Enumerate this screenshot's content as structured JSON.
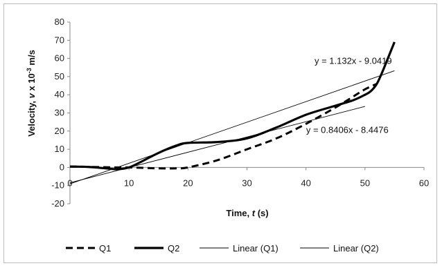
{
  "chart_data": {
    "type": "line",
    "title": "",
    "xlabel": "Time, t (s)",
    "ylabel": "Velocity, v x 10⁻³ m/s",
    "xlim": [
      0,
      60
    ],
    "ylim": [
      -20,
      80
    ],
    "xticks": [
      0,
      10,
      20,
      30,
      40,
      50,
      60
    ],
    "yticks": [
      -20,
      -10,
      0,
      10,
      20,
      30,
      40,
      50,
      60,
      70,
      80
    ],
    "grid": false,
    "legend_position": "bottom",
    "series": [
      {
        "name": "Q1",
        "style": "dashed-thick",
        "x": [
          0,
          5,
          8,
          10,
          15,
          18,
          20,
          25,
          30,
          35,
          40,
          45,
          48,
          50,
          52
        ],
        "y": [
          0.5,
          0.2,
          0,
          0,
          -0.5,
          -0.5,
          0,
          4,
          10,
          16,
          24,
          33,
          39,
          43,
          46
        ]
      },
      {
        "name": "Q2",
        "style": "solid-thick",
        "x": [
          0,
          3,
          6,
          8,
          10,
          12,
          15,
          18,
          20,
          25,
          30,
          35,
          40,
          45,
          48,
          50,
          51,
          52,
          53,
          54,
          55
        ],
        "y": [
          0.5,
          0.3,
          -0.5,
          -1,
          0,
          3,
          8,
          12,
          13.5,
          14,
          16,
          22,
          29,
          34,
          37,
          40,
          42,
          46,
          53,
          61,
          69
        ]
      },
      {
        "name": "Linear (Q1)",
        "style": "trendline",
        "slope": 0.8406,
        "intercept": -8.4476,
        "x": [
          0,
          50
        ]
      },
      {
        "name": "Linear (Q2)",
        "style": "trendline",
        "slope": 1.132,
        "intercept": -9.0419,
        "x": [
          0,
          55
        ]
      }
    ],
    "annotations": [
      {
        "text": "y = 1.132x - 9.0419",
        "x": 48,
        "y": 57
      },
      {
        "text": "y = 0.8406x - 8.4476",
        "x": 47,
        "y": 19
      }
    ]
  }
}
